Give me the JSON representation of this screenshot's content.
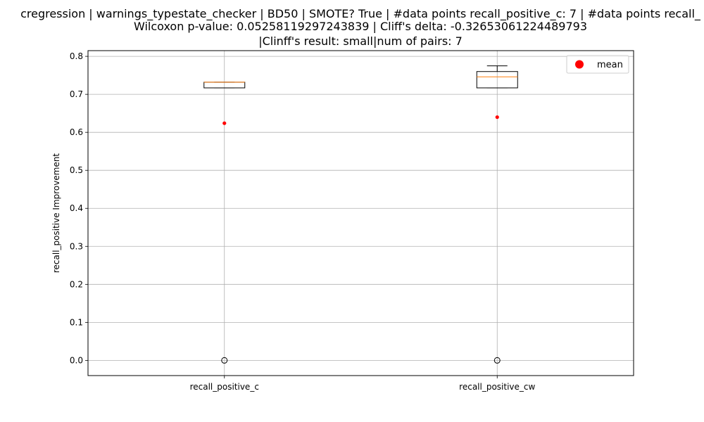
{
  "chart_data": {
    "type": "box",
    "title_lines": [
      "cregression | warnings_typestate_checker | BD50 | SMOTE? True | #data points recall_positive_c: 7 | #data points recall_",
      "Wilcoxon p-value: 0.05258119297243839 | Cliff's delta: -0.32653061224489793",
      "|Clinff's result: small|num of pairs: 7"
    ],
    "xlabel": "",
    "ylabel": "recall_positive Improvement",
    "ylim": [
      -0.04,
      0.815
    ],
    "yticks": [
      0.0,
      0.1,
      0.2,
      0.3,
      0.4,
      0.5,
      0.6,
      0.7,
      0.8
    ],
    "ytick_labels": [
      "0.0",
      "0.1",
      "0.2",
      "0.3",
      "0.4",
      "0.5",
      "0.6",
      "0.7",
      "0.8"
    ],
    "grid": true,
    "legend": {
      "position": "top-right",
      "entries": [
        {
          "label": "mean",
          "color": "#ff0000",
          "marker": "circle"
        }
      ]
    },
    "categories": [
      "recall_positive_c",
      "recall_positive_cw"
    ],
    "boxes": [
      {
        "name": "recall_positive_c",
        "whisker_low": 0.717,
        "q1": 0.717,
        "median": 0.732,
        "q3": 0.732,
        "whisker_high": 0.732,
        "mean": 0.624,
        "outliers": [
          0.0
        ]
      },
      {
        "name": "recall_positive_cw",
        "whisker_low": 0.717,
        "q1": 0.717,
        "median": 0.746,
        "q3": 0.76,
        "whisker_high": 0.775,
        "mean": 0.64,
        "outliers": [
          0.0
        ]
      }
    ],
    "colors": {
      "box": "#000000",
      "median": "#ff7f0e",
      "mean": "#ff0000",
      "grid": "#b0b0b0"
    }
  }
}
